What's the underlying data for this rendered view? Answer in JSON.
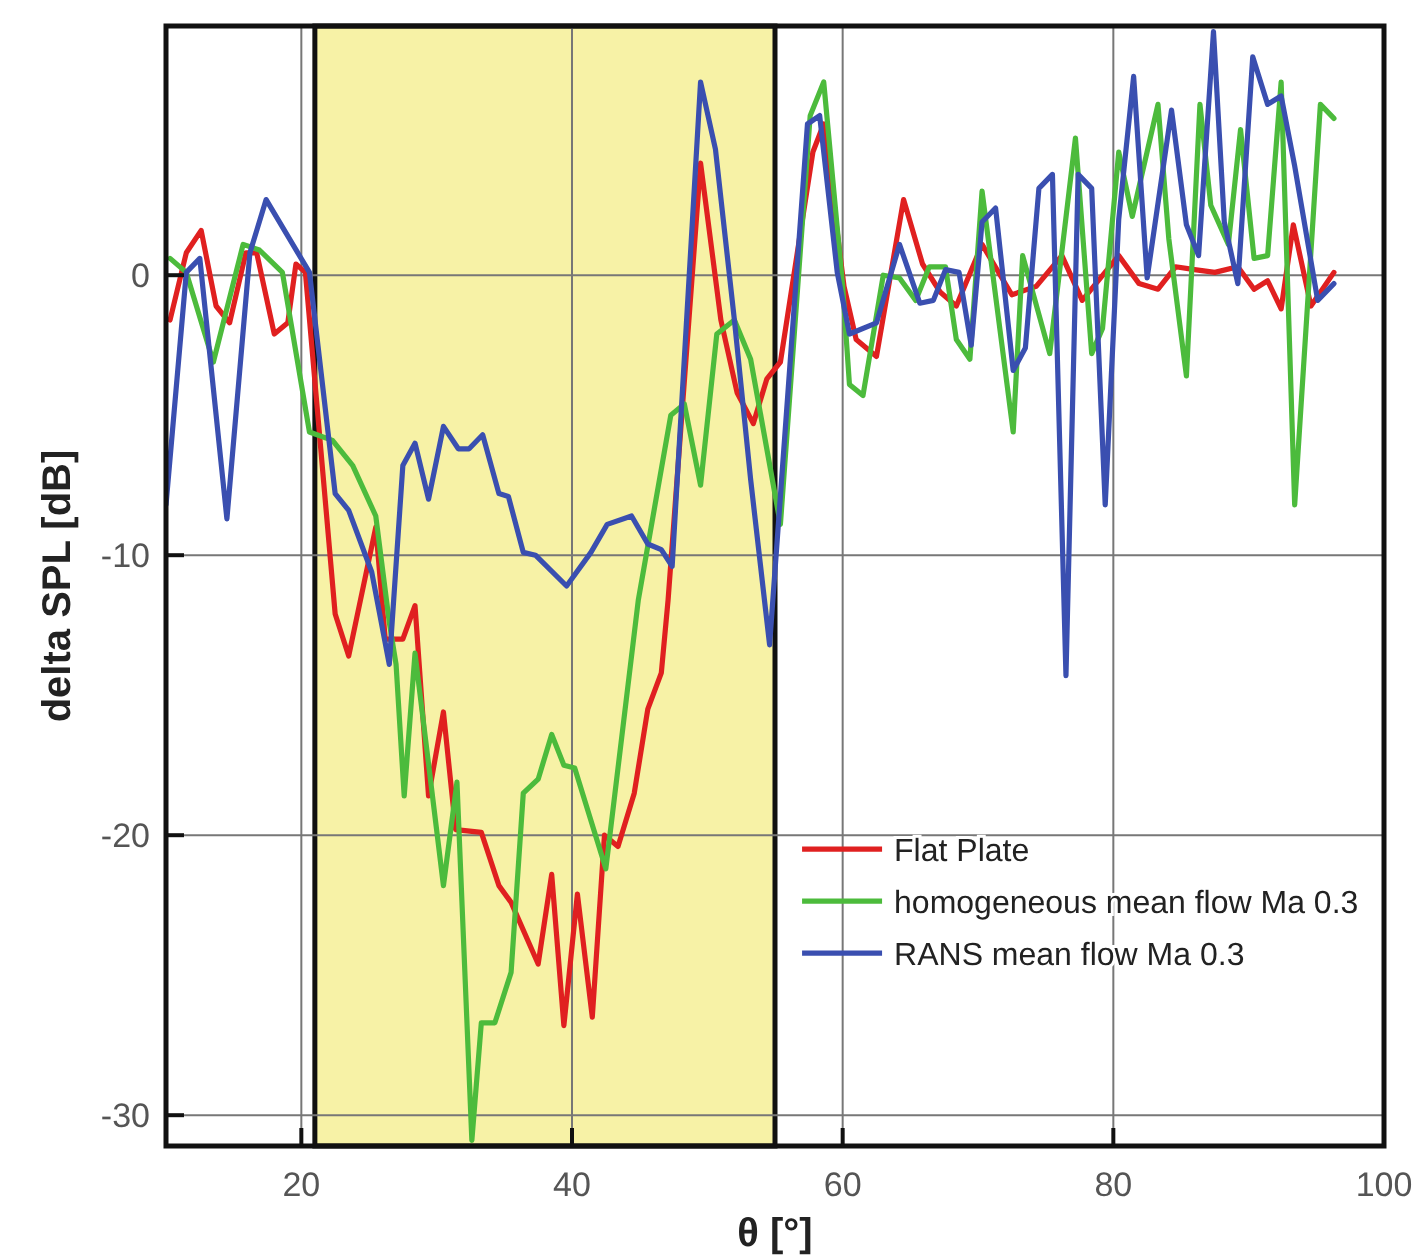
{
  "chart_data": {
    "type": "line",
    "xlabel": "θ [°]",
    "ylabel": "delta SPL [dB]",
    "xlim": [
      10,
      100
    ],
    "xticks": [
      20,
      40,
      60,
      80,
      100
    ],
    "ylim": [
      -31.1,
      8.9
    ],
    "yticks": [
      0,
      -10,
      -20,
      -30
    ],
    "grid": true,
    "legend": "bottom right",
    "line_style": "solid",
    "marker": "none",
    "bands": [
      {
        "axis": "x",
        "from": 21,
        "to": 55,
        "color": "#f7f2a6"
      }
    ],
    "series": [
      {
        "name": "Flat Plate",
        "color": "#e02020",
        "x": [
          10.3,
          11.5,
          12.6,
          13.7,
          14.7,
          15.9,
          16.7,
          18.0,
          19.0,
          19.6,
          20.3,
          22.5,
          23.5,
          25.5,
          26.2,
          27.5,
          28.4,
          29.4,
          30.5,
          31.4,
          33.3,
          34.6,
          35.5,
          37.5,
          38.5,
          39.4,
          40.4,
          41.5,
          42.4,
          43.4,
          44.6,
          45.6,
          46.6,
          47.1,
          49.5,
          51.0,
          52.2,
          53.4,
          54.4,
          55.4,
          57.8,
          58.6,
          60.1,
          61.0,
          62.5,
          64.5,
          65.9,
          67.2,
          68.4,
          70.3,
          72.5,
          74.3,
          76.2,
          77.7,
          80.4,
          81.9,
          83.3,
          84.6,
          86.0,
          87.5,
          89.2,
          90.4,
          91.4,
          92.4,
          93.3,
          94.6,
          96.3
        ],
        "values": [
          -1.6,
          0.8,
          1.6,
          -1.1,
          -1.7,
          0.8,
          0.8,
          -2.1,
          -1.7,
          0.4,
          0.1,
          -12.1,
          -13.6,
          -9,
          -13,
          -13,
          -11.8,
          -18.6,
          -15.6,
          -19.8,
          -19.9,
          -21.8,
          -22.4,
          -24.6,
          -21.4,
          -26.8,
          -22.1,
          -26.5,
          -20,
          -20.4,
          -18.5,
          -15.5,
          -14.2,
          -11.6,
          4.0,
          -1.6,
          -4.2,
          -5.3,
          -3.7,
          -3.1,
          4.4,
          5.4,
          -0.4,
          -2.3,
          -2.9,
          2.7,
          0.4,
          -0.6,
          -1.1,
          1.1,
          -0.7,
          -0.4,
          0.7,
          -0.9,
          0.7,
          -0.3,
          -0.5,
          0.3,
          0.2,
          0.1,
          0.3,
          -0.5,
          -0.2,
          -1.2,
          1.8,
          -1.1,
          0.1
        ]
      },
      {
        "name": "homogeneous mean flow Ma 0.3",
        "color": "#4cbb3c",
        "x": [
          10.3,
          11.5,
          13.5,
          15.7,
          16.9,
          18.6,
          20.6,
          22.3,
          23.8,
          25.5,
          26.5,
          27.0,
          27.6,
          28.4,
          30.5,
          31.5,
          32.6,
          33.3,
          34.3,
          35.5,
          36.4,
          37.5,
          38.5,
          39.4,
          40.2,
          42.5,
          44.9,
          47.3,
          48.3,
          49.5,
          50.7,
          52.0,
          53.2,
          55.4,
          57.6,
          58.6,
          60.0,
          60.5,
          61.5,
          63.0,
          64.2,
          65.4,
          66.4,
          67.6,
          68.4,
          69.4,
          70.3,
          72.6,
          73.3,
          75.3,
          77.2,
          78.4,
          79.2,
          80.4,
          81.4,
          83.3,
          84.1,
          85.4,
          86.4,
          87.2,
          88.5,
          89.4,
          90.4,
          91.4,
          92.4,
          93.4,
          95.3,
          96.3
        ],
        "values": [
          0.6,
          0.1,
          -3.1,
          1.1,
          0.9,
          0.1,
          -5.6,
          -5.9,
          -6.8,
          -8.6,
          -12.4,
          -13.9,
          -18.6,
          -13.5,
          -21.8,
          -18.1,
          -30.9,
          -26.7,
          -26.7,
          -24.9,
          -18.5,
          -18,
          -16.4,
          -17.5,
          -17.6,
          -21.2,
          -11.6,
          -5,
          -4.6,
          -7.5,
          -2.1,
          -1.6,
          -3.0,
          -8.9,
          5.7,
          6.9,
          -0.4,
          -3.9,
          -4.3,
          0,
          -0.1,
          -0.9,
          0.3,
          0.3,
          -2.3,
          -3,
          3,
          -5.6,
          0.7,
          -2.8,
          4.9,
          -2.8,
          -1.9,
          4.4,
          2.1,
          6.1,
          1.3,
          -3.6,
          6.1,
          2.5,
          1.1,
          5.2,
          0.6,
          0.7,
          6.9,
          -8.2,
          6.1,
          5.6
        ]
      },
      {
        "name": "RANS mean flow Ma 0.3",
        "color": "#3a4fb0",
        "x": [
          10.0,
          11.5,
          12.5,
          14.5,
          16.2,
          17.4,
          20.6,
          22.5,
          23.5,
          25.2,
          26.5,
          27.5,
          28.4,
          29.4,
          30.5,
          31.6,
          32.4,
          33.4,
          34.6,
          35.3,
          36.4,
          37.3,
          39.6,
          41.4,
          42.6,
          44.4,
          45.6,
          46.6,
          47.4,
          49.5,
          50.6,
          52.0,
          53.2,
          54.6,
          57.4,
          58.3,
          59.6,
          60.5,
          62.5,
          64.2,
          65.7,
          66.7,
          67.6,
          68.6,
          69.5,
          70.3,
          71.3,
          72.6,
          73.5,
          74.5,
          75.5,
          76.5,
          77.4,
          78.4,
          79.4,
          80.4,
          81.5,
          82.5,
          84.3,
          85.4,
          86.3,
          87.4,
          88.2,
          89.2,
          90.3,
          91.4,
          92.4,
          93.4,
          95.1,
          96.3
        ],
        "values": [
          -8.2,
          0.1,
          0.6,
          -8.7,
          0.8,
          2.7,
          0.1,
          -7.8,
          -8.4,
          -10.6,
          -13.9,
          -6.8,
          -6,
          -8,
          -5.4,
          -6.2,
          -6.2,
          -5.7,
          -7.8,
          -7.9,
          -9.9,
          -10,
          -11.1,
          -9.9,
          -8.9,
          -8.6,
          -9.6,
          -9.8,
          -10.4,
          6.9,
          4.5,
          -1.6,
          -7.3,
          -13.2,
          5.4,
          5.7,
          0.1,
          -2.1,
          -1.7,
          1.1,
          -1,
          -0.9,
          0.2,
          0.1,
          -2.5,
          1.9,
          2.4,
          -3.4,
          -2.6,
          3.1,
          3.6,
          -14.3,
          3.6,
          3.1,
          -8.2,
          2,
          7.1,
          -0.1,
          5.9,
          1.8,
          0.7,
          8.7,
          1.9,
          -0.3,
          7.8,
          6.1,
          6.4,
          3.9,
          -0.9,
          -0.3
        ]
      }
    ]
  }
}
